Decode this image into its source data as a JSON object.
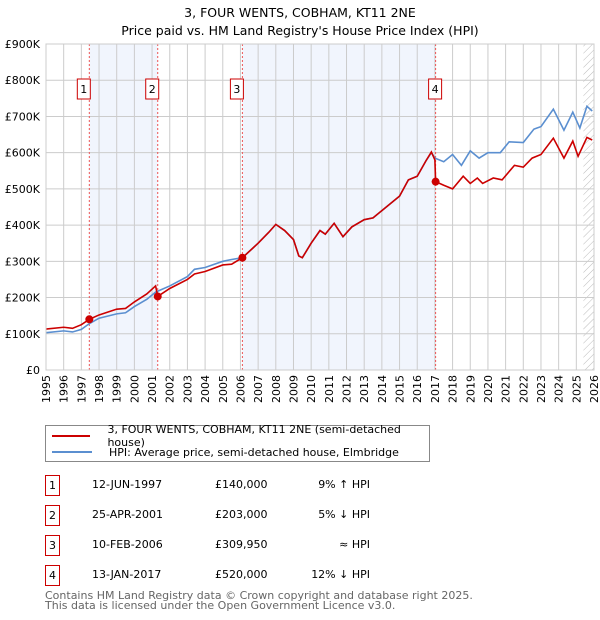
{
  "title": "3, FOUR WENTS, COBHAM, KT11 2NE",
  "subtitle": "Price paid vs. HM Land Registry's House Price Index (HPI)",
  "chart_data": {
    "type": "line",
    "title": "3, FOUR WENTS, COBHAM, KT11 2NE",
    "subtitle": "Price paid vs. HM Land Registry's House Price Index (HPI)",
    "xlim": [
      1995,
      2026
    ],
    "ylim": [
      0,
      900000
    ],
    "grid": true,
    "x_ticks": [
      "1995",
      "1996",
      "1997",
      "1998",
      "1999",
      "2000",
      "2001",
      "2002",
      "2003",
      "2004",
      "2005",
      "2006",
      "2007",
      "2008",
      "2009",
      "2010",
      "2011",
      "2012",
      "2013",
      "2014",
      "2015",
      "2016",
      "2017",
      "2018",
      "2019",
      "2020",
      "2021",
      "2022",
      "2023",
      "2024",
      "2025",
      "2026"
    ],
    "y_ticks": [
      {
        "value": 0,
        "label": "£0"
      },
      {
        "value": 100000,
        "label": "£100K"
      },
      {
        "value": 200000,
        "label": "£200K"
      },
      {
        "value": 300000,
        "label": "£300K"
      },
      {
        "value": 400000,
        "label": "£400K"
      },
      {
        "value": 500000,
        "label": "£500K"
      },
      {
        "value": 600000,
        "label": "£600K"
      },
      {
        "value": 700000,
        "label": "£700K"
      },
      {
        "value": 800000,
        "label": "£800K"
      },
      {
        "value": 900000,
        "label": "£900K"
      }
    ],
    "series": [
      {
        "name": "3, FOUR WENTS, COBHAM, KT11 2NE (semi-detached house)",
        "color": "#cc0000",
        "points": [
          [
            1995,
            113000
          ],
          [
            1996,
            118000
          ],
          [
            1996.5,
            115000
          ],
          [
            1997,
            125000
          ],
          [
            1997.45,
            140000
          ],
          [
            1998,
            152000
          ],
          [
            1999,
            168000
          ],
          [
            1999.5,
            170000
          ],
          [
            2000,
            188000
          ],
          [
            2000.7,
            210000
          ],
          [
            2001.2,
            232000
          ],
          [
            2001.32,
            203000
          ],
          [
            2002,
            225000
          ],
          [
            2003,
            250000
          ],
          [
            2003.4,
            265000
          ],
          [
            2004,
            272000
          ],
          [
            2005,
            290000
          ],
          [
            2005.5,
            292000
          ],
          [
            2006.11,
            309950
          ],
          [
            2007,
            350000
          ],
          [
            2007.6,
            380000
          ],
          [
            2008,
            402000
          ],
          [
            2008.5,
            385000
          ],
          [
            2009,
            360000
          ],
          [
            2009.3,
            315000
          ],
          [
            2009.5,
            310000
          ],
          [
            2010,
            350000
          ],
          [
            2010.5,
            385000
          ],
          [
            2010.8,
            375000
          ],
          [
            2011.3,
            405000
          ],
          [
            2011.8,
            368000
          ],
          [
            2012.3,
            395000
          ],
          [
            2013,
            415000
          ],
          [
            2013.5,
            420000
          ],
          [
            2014,
            440000
          ],
          [
            2015,
            480000
          ],
          [
            2015.5,
            525000
          ],
          [
            2016,
            535000
          ],
          [
            2016.5,
            578000
          ],
          [
            2016.8,
            602000
          ],
          [
            2017.0,
            580000
          ],
          [
            2017.04,
            520000
          ],
          [
            2017.5,
            510000
          ],
          [
            2018,
            500000
          ],
          [
            2018.6,
            535000
          ],
          [
            2019,
            515000
          ],
          [
            2019.4,
            530000
          ],
          [
            2019.7,
            515000
          ],
          [
            2020.3,
            530000
          ],
          [
            2020.8,
            525000
          ],
          [
            2021.5,
            565000
          ],
          [
            2022,
            560000
          ],
          [
            2022.5,
            585000
          ],
          [
            2023,
            595000
          ],
          [
            2023.7,
            640000
          ],
          [
            2024.3,
            585000
          ],
          [
            2024.8,
            632000
          ],
          [
            2025.1,
            590000
          ],
          [
            2025.6,
            642000
          ],
          [
            2025.9,
            635000
          ]
        ]
      },
      {
        "name": "HPI: Average price, semi-detached house, Elmbridge",
        "color": "#5b8fd0",
        "points": [
          [
            1995,
            103000
          ],
          [
            1996,
            108000
          ],
          [
            1996.5,
            105000
          ],
          [
            1997,
            112000
          ],
          [
            1997.45,
            128000
          ],
          [
            1998,
            143000
          ],
          [
            1999,
            155000
          ],
          [
            1999.5,
            158000
          ],
          [
            2000,
            175000
          ],
          [
            2000.7,
            195000
          ],
          [
            2001.2,
            215000
          ],
          [
            2002,
            232000
          ],
          [
            2003,
            258000
          ],
          [
            2003.4,
            278000
          ],
          [
            2004,
            283000
          ],
          [
            2005,
            300000
          ],
          [
            2005.5,
            305000
          ],
          [
            2006.11,
            310000
          ],
          [
            2007,
            350000
          ],
          [
            2007.6,
            380000
          ],
          [
            2008,
            402000
          ],
          [
            2008.5,
            385000
          ],
          [
            2009,
            360000
          ],
          [
            2009.3,
            315000
          ],
          [
            2009.5,
            310000
          ],
          [
            2010,
            350000
          ],
          [
            2010.5,
            385000
          ],
          [
            2010.8,
            375000
          ],
          [
            2011.3,
            405000
          ],
          [
            2011.8,
            368000
          ],
          [
            2012.3,
            395000
          ],
          [
            2013,
            415000
          ],
          [
            2013.5,
            420000
          ],
          [
            2014,
            440000
          ],
          [
            2015,
            480000
          ],
          [
            2015.5,
            525000
          ],
          [
            2016,
            535000
          ],
          [
            2016.5,
            578000
          ],
          [
            2016.8,
            600000
          ],
          [
            2017.0,
            585000
          ],
          [
            2017.5,
            575000
          ],
          [
            2018,
            595000
          ],
          [
            2018.5,
            565000
          ],
          [
            2019,
            605000
          ],
          [
            2019.5,
            585000
          ],
          [
            2020,
            600000
          ],
          [
            2020.7,
            600000
          ],
          [
            2021.2,
            630000
          ],
          [
            2022,
            628000
          ],
          [
            2022.6,
            665000
          ],
          [
            2023,
            672000
          ],
          [
            2023.7,
            720000
          ],
          [
            2024.3,
            662000
          ],
          [
            2024.8,
            712000
          ],
          [
            2025.2,
            668000
          ],
          [
            2025.6,
            728000
          ],
          [
            2025.9,
            715000
          ]
        ]
      }
    ],
    "sales": [
      {
        "label": "1",
        "date": "12-JUN-1997",
        "x": 1997.45,
        "price": 140000
      },
      {
        "label": "2",
        "date": "25-APR-2001",
        "x": 2001.32,
        "price": 203000
      },
      {
        "label": "3",
        "date": "10-FEB-2006",
        "x": 2006.11,
        "price": 309950
      },
      {
        "label": "4",
        "date": "13-JAN-2017",
        "x": 2017.04,
        "price": 520000
      }
    ],
    "shaded_ranges": [
      [
        1997.45,
        2001.32
      ],
      [
        2006.11,
        2017.04
      ]
    ],
    "forecast_from": 2025.4
  },
  "legend": [
    {
      "label": "3, FOUR WENTS, COBHAM, KT11 2NE (semi-detached house)",
      "color": "#cc0000"
    },
    {
      "label": "HPI: Average price, semi-detached house, Elmbridge",
      "color": "#5b8fd0"
    }
  ],
  "transactions": [
    {
      "num": "1",
      "date": "12-JUN-1997",
      "price": "£140,000",
      "hpi": "9% ↑ HPI"
    },
    {
      "num": "2",
      "date": "25-APR-2001",
      "price": "£203,000",
      "hpi": "5% ↓ HPI"
    },
    {
      "num": "3",
      "date": "10-FEB-2006",
      "price": "£309,950",
      "hpi": "≈ HPI"
    },
    {
      "num": "4",
      "date": "13-JAN-2017",
      "price": "£520,000",
      "hpi": "12% ↓ HPI"
    }
  ],
  "footer": [
    "Contains HM Land Registry data © Crown copyright and database right 2025.",
    "This data is licensed under the Open Government Licence v3.0."
  ]
}
